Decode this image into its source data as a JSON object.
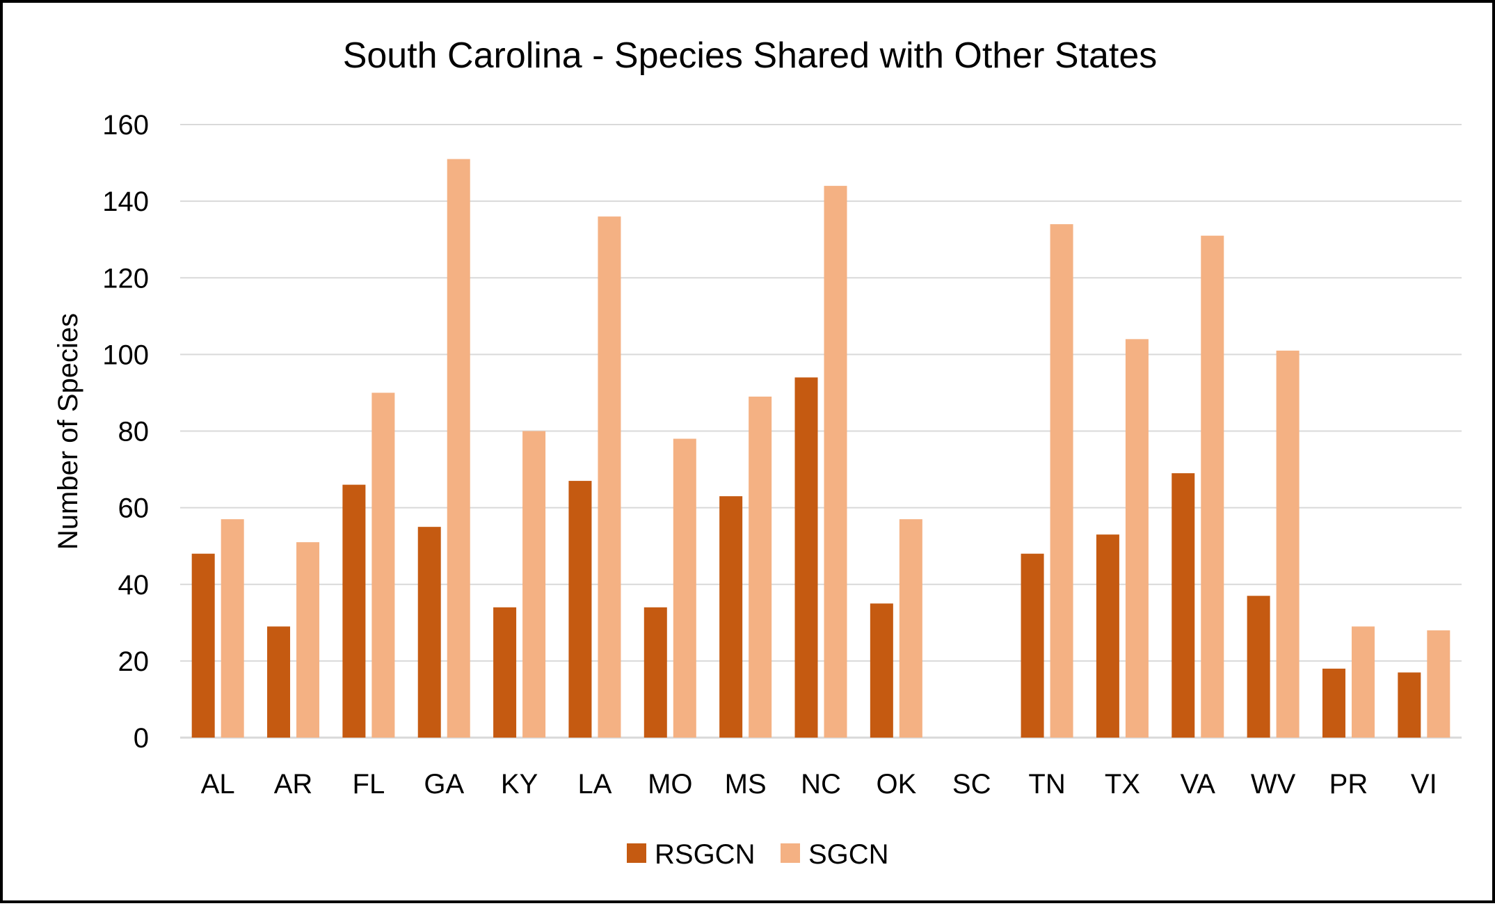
{
  "chart_data": {
    "type": "bar",
    "title": "South Carolina - Species Shared with Other States",
    "xlabel": "",
    "ylabel": "Number of Species",
    "ylim": [
      0,
      160
    ],
    "yticks": [
      "0",
      "20",
      "40",
      "60",
      "80",
      "100",
      "120",
      "140",
      "160"
    ],
    "grid": true,
    "legend_position": "bottom",
    "categories": [
      "AL",
      "AR",
      "FL",
      "GA",
      "KY",
      "LA",
      "MO",
      "MS",
      "NC",
      "OK",
      "SC",
      "TN",
      "TX",
      "VA",
      "WV",
      "PR",
      "VI"
    ],
    "series": [
      {
        "name": "RSGCN",
        "color": "#c55a11",
        "values": [
          48,
          29,
          66,
          55,
          34,
          67,
          34,
          63,
          94,
          35,
          0,
          48,
          53,
          69,
          37,
          18,
          17
        ]
      },
      {
        "name": "SGCN",
        "color": "#f4b183",
        "values": [
          57,
          51,
          90,
          151,
          80,
          136,
          78,
          89,
          144,
          57,
          0,
          134,
          104,
          131,
          101,
          29,
          28
        ]
      }
    ],
    "colors": {
      "gridline": "#d9d9d9",
      "axis": "#d9d9d9",
      "text": "#000000",
      "border": "#000000"
    }
  }
}
